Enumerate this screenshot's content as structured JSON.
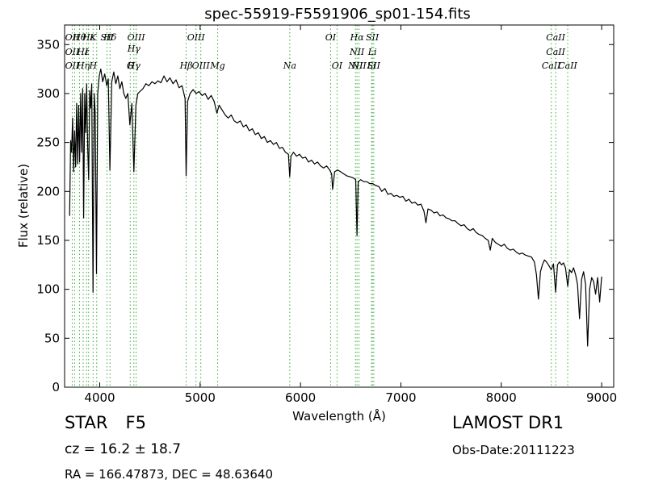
{
  "chart_data": {
    "type": "line",
    "title": "spec-55919-F5591906_sp01-154.fits",
    "xlabel": "Wavelength (Å)",
    "ylabel": "Flux (relative)",
    "xlim": [
      3650,
      9120
    ],
    "ylim": [
      0,
      370
    ],
    "xticks": [
      4000,
      5000,
      6000,
      7000,
      8000,
      9000
    ],
    "yticks": [
      0,
      50,
      100,
      150,
      200,
      250,
      300,
      350
    ],
    "grid": false,
    "series": [
      {
        "color": "#000000",
        "points": [
          [
            3700,
            175
          ],
          [
            3710,
            252
          ],
          [
            3720,
            240
          ],
          [
            3730,
            275
          ],
          [
            3740,
            220
          ],
          [
            3750,
            262
          ],
          [
            3760,
            225
          ],
          [
            3770,
            290
          ],
          [
            3780,
            228
          ],
          [
            3790,
            288
          ],
          [
            3800,
            230
          ],
          [
            3810,
            300
          ],
          [
            3820,
            240
          ],
          [
            3830,
            305
          ],
          [
            3840,
            173
          ],
          [
            3850,
            300
          ],
          [
            3860,
            260
          ],
          [
            3870,
            310
          ],
          [
            3880,
            245
          ],
          [
            3890,
            212
          ],
          [
            3900,
            303
          ],
          [
            3910,
            285
          ],
          [
            3920,
            310
          ],
          [
            3933,
            97
          ],
          [
            3945,
            300
          ],
          [
            3955,
            280
          ],
          [
            3968,
            116
          ],
          [
            3980,
            300
          ],
          [
            3995,
            318
          ],
          [
            4010,
            325
          ],
          [
            4030,
            312
          ],
          [
            4050,
            320
          ],
          [
            4070,
            308
          ],
          [
            4085,
            315
          ],
          [
            4101,
            222
          ],
          [
            4120,
            312
          ],
          [
            4140,
            322
          ],
          [
            4160,
            310
          ],
          [
            4180,
            318
          ],
          [
            4200,
            305
          ],
          [
            4220,
            312
          ],
          [
            4240,
            300
          ],
          [
            4260,
            295
          ],
          [
            4280,
            300
          ],
          [
            4300,
            268
          ],
          [
            4320,
            290
          ],
          [
            4340,
            220
          ],
          [
            4360,
            288
          ],
          [
            4380,
            300
          ],
          [
            4400,
            302
          ],
          [
            4430,
            305
          ],
          [
            4460,
            310
          ],
          [
            4490,
            308
          ],
          [
            4520,
            312
          ],
          [
            4550,
            310
          ],
          [
            4580,
            313
          ],
          [
            4610,
            311
          ],
          [
            4640,
            318
          ],
          [
            4670,
            312
          ],
          [
            4700,
            316
          ],
          [
            4730,
            310
          ],
          [
            4760,
            314
          ],
          [
            4790,
            306
          ],
          [
            4820,
            308
          ],
          [
            4850,
            295
          ],
          [
            4861,
            216
          ],
          [
            4875,
            292
          ],
          [
            4900,
            300
          ],
          [
            4930,
            304
          ],
          [
            4960,
            300
          ],
          [
            4990,
            302
          ],
          [
            5020,
            298
          ],
          [
            5050,
            300
          ],
          [
            5080,
            294
          ],
          [
            5110,
            298
          ],
          [
            5140,
            292
          ],
          [
            5167,
            280
          ],
          [
            5190,
            288
          ],
          [
            5220,
            283
          ],
          [
            5250,
            278
          ],
          [
            5280,
            275
          ],
          [
            5310,
            278
          ],
          [
            5340,
            272
          ],
          [
            5370,
            270
          ],
          [
            5400,
            272
          ],
          [
            5430,
            266
          ],
          [
            5460,
            268
          ],
          [
            5490,
            262
          ],
          [
            5520,
            264
          ],
          [
            5550,
            258
          ],
          [
            5580,
            260
          ],
          [
            5610,
            254
          ],
          [
            5640,
            256
          ],
          [
            5670,
            250
          ],
          [
            5700,
            252
          ],
          [
            5730,
            248
          ],
          [
            5760,
            250
          ],
          [
            5790,
            244
          ],
          [
            5820,
            245
          ],
          [
            5850,
            240
          ],
          [
            5880,
            238
          ],
          [
            5893,
            215
          ],
          [
            5905,
            236
          ],
          [
            5930,
            240
          ],
          [
            5960,
            236
          ],
          [
            5990,
            238
          ],
          [
            6020,
            234
          ],
          [
            6050,
            235
          ],
          [
            6080,
            230
          ],
          [
            6110,
            232
          ],
          [
            6140,
            228
          ],
          [
            6170,
            230
          ],
          [
            6200,
            226
          ],
          [
            6230,
            224
          ],
          [
            6260,
            226
          ],
          [
            6290,
            222
          ],
          [
            6310,
            218
          ],
          [
            6320,
            202
          ],
          [
            6340,
            220
          ],
          [
            6370,
            222
          ],
          [
            6400,
            220
          ],
          [
            6430,
            218
          ],
          [
            6460,
            216
          ],
          [
            6490,
            215
          ],
          [
            6520,
            214
          ],
          [
            6550,
            212
          ],
          [
            6563,
            155
          ],
          [
            6575,
            210
          ],
          [
            6600,
            212
          ],
          [
            6630,
            210
          ],
          [
            6660,
            210
          ],
          [
            6690,
            208
          ],
          [
            6720,
            208
          ],
          [
            6750,
            206
          ],
          [
            6780,
            205
          ],
          [
            6810,
            200
          ],
          [
            6840,
            203
          ],
          [
            6870,
            197
          ],
          [
            6900,
            198
          ],
          [
            6930,
            195
          ],
          [
            6960,
            196
          ],
          [
            6990,
            194
          ],
          [
            7020,
            195
          ],
          [
            7050,
            190
          ],
          [
            7080,
            192
          ],
          [
            7110,
            188
          ],
          [
            7140,
            189
          ],
          [
            7170,
            186
          ],
          [
            7200,
            187
          ],
          [
            7230,
            180
          ],
          [
            7250,
            168
          ],
          [
            7270,
            182
          ],
          [
            7300,
            181
          ],
          [
            7330,
            178
          ],
          [
            7360,
            179
          ],
          [
            7390,
            175
          ],
          [
            7420,
            176
          ],
          [
            7450,
            173
          ],
          [
            7480,
            172
          ],
          [
            7510,
            170
          ],
          [
            7540,
            170
          ],
          [
            7570,
            167
          ],
          [
            7600,
            165
          ],
          [
            7630,
            166
          ],
          [
            7660,
            162
          ],
          [
            7690,
            160
          ],
          [
            7720,
            162
          ],
          [
            7750,
            158
          ],
          [
            7780,
            156
          ],
          [
            7810,
            155
          ],
          [
            7840,
            152
          ],
          [
            7870,
            150
          ],
          [
            7890,
            140
          ],
          [
            7910,
            152
          ],
          [
            7940,
            148
          ],
          [
            7970,
            146
          ],
          [
            8000,
            144
          ],
          [
            8030,
            146
          ],
          [
            8060,
            142
          ],
          [
            8090,
            140
          ],
          [
            8120,
            141
          ],
          [
            8150,
            138
          ],
          [
            8180,
            136
          ],
          [
            8210,
            137
          ],
          [
            8240,
            135
          ],
          [
            8270,
            134
          ],
          [
            8300,
            133
          ],
          [
            8330,
            128
          ],
          [
            8350,
            115
          ],
          [
            8370,
            90
          ],
          [
            8390,
            118
          ],
          [
            8410,
            125
          ],
          [
            8430,
            130
          ],
          [
            8450,
            128
          ],
          [
            8470,
            125
          ],
          [
            8498,
            120
          ],
          [
            8520,
            126
          ],
          [
            8542,
            97
          ],
          [
            8560,
            125
          ],
          [
            8580,
            128
          ],
          [
            8600,
            125
          ],
          [
            8620,
            127
          ],
          [
            8640,
            122
          ],
          [
            8662,
            103
          ],
          [
            8680,
            120
          ],
          [
            8700,
            117
          ],
          [
            8720,
            122
          ],
          [
            8740,
            115
          ],
          [
            8760,
            105
          ],
          [
            8780,
            70
          ],
          [
            8800,
            110
          ],
          [
            8820,
            118
          ],
          [
            8840,
            105
          ],
          [
            8860,
            42
          ],
          [
            8880,
            100
          ],
          [
            8900,
            112
          ],
          [
            8920,
            108
          ],
          [
            8940,
            95
          ],
          [
            8960,
            112
          ],
          [
            8980,
            87
          ],
          [
            9000,
            113
          ]
        ]
      }
    ],
    "line_color": "#3aaa3a",
    "lines": [
      {
        "x": 3726,
        "top": "OII",
        "bottom": "OII"
      },
      {
        "x": 3750,
        "top": "",
        "bottom": ""
      },
      {
        "x": 3798,
        "top": "Hθ",
        "bottom": ""
      },
      {
        "x": 3835,
        "top": "",
        "bottom": "Hη"
      },
      {
        "x": 3869,
        "top": "",
        "bottom": ""
      },
      {
        "x": 3889,
        "top": "Hε",
        "bottom": ""
      },
      {
        "x": 3934,
        "top": "K",
        "bottom": "H"
      },
      {
        "x": 3970,
        "top": "",
        "bottom": ""
      },
      {
        "x": 4072,
        "top": "SII",
        "bottom": ""
      },
      {
        "x": 4102,
        "top": "Hδ",
        "bottom": ""
      },
      {
        "x": 4304,
        "top": "",
        "bottom": "G"
      },
      {
        "x": 4340,
        "top": "",
        "bottom": "Hγ"
      },
      {
        "x": 4363,
        "top": "OIII",
        "bottom": ""
      },
      {
        "x": 4861,
        "top": "",
        "bottom": "Hβ"
      },
      {
        "x": 4959,
        "top": "OIII",
        "bottom": ""
      },
      {
        "x": 5007,
        "top": "",
        "bottom": "OIII"
      },
      {
        "x": 5175,
        "top": "",
        "bottom": "Mg"
      },
      {
        "x": 5893,
        "top": "",
        "bottom": "Na"
      },
      {
        "x": 6300,
        "top": "OI",
        "bottom": ""
      },
      {
        "x": 6364,
        "top": "",
        "bottom": "OI"
      },
      {
        "x": 6548,
        "top": "",
        "bottom": "NII"
      },
      {
        "x": 6563,
        "top": "Hα",
        "bottom": ""
      },
      {
        "x": 6583,
        "top": "",
        "bottom": "NII"
      },
      {
        "x": 6708,
        "top": "",
        "bottom": "Li"
      },
      {
        "x": 6716,
        "top": "SII",
        "bottom": ""
      },
      {
        "x": 6730,
        "top": "",
        "bottom": "SII"
      },
      {
        "x": 8498,
        "top": "",
        "bottom": "CaII"
      },
      {
        "x": 8542,
        "top": "CaII",
        "bottom": ""
      },
      {
        "x": 8662,
        "top": "",
        "bottom": "CaII"
      }
    ]
  },
  "info": {
    "class_label": "STAR",
    "subclass": "F5",
    "redshift": "cz = 16.2  ± 18.7",
    "survey": "LAMOST DR1",
    "obs_date": "Obs-Date:20111223",
    "coords": "RA = 166.47873, DEC = 48.63640"
  }
}
